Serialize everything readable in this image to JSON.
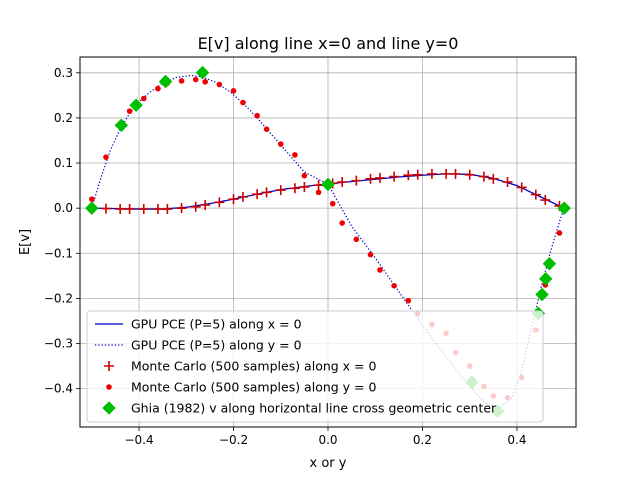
{
  "chart_data": {
    "type": "line",
    "title": "E[v] along line x=0 and line y=0",
    "xlabel": "x or y",
    "ylabel": "E[v]",
    "xlim": [
      -0.525,
      0.525
    ],
    "ylim": [
      -0.485,
      0.335
    ],
    "grid": true,
    "legend_position": "lower-left",
    "x_ticks": [
      -0.4,
      -0.2,
      0.0,
      0.2,
      0.4
    ],
    "x_tick_labels": [
      "−0.4",
      "−0.2",
      "0.0",
      "0.2",
      "0.4"
    ],
    "y_ticks": [
      -0.4,
      -0.3,
      -0.2,
      -0.1,
      0.0,
      0.1,
      0.2,
      0.3
    ],
    "y_tick_labels": [
      "−0.4",
      "−0.3",
      "−0.2",
      "−0.1",
      "0.0",
      "0.1",
      "0.2",
      "0.3"
    ],
    "colors": {
      "pce_x": "#0000cc",
      "pce_y": "#0000cc",
      "mc_x": "#cc0000",
      "mc_y": "#ee0000",
      "ghia": "#00bf00"
    },
    "series": [
      {
        "name": "GPU PCE (P=5) along x = 0",
        "kind": "line-solid",
        "color_key": "pce_x",
        "x": [
          -0.5,
          -0.45,
          -0.4,
          -0.35,
          -0.3,
          -0.25,
          -0.2,
          -0.15,
          -0.1,
          -0.05,
          0.0,
          0.05,
          0.1,
          0.15,
          0.2,
          0.25,
          0.3,
          0.35,
          0.4,
          0.45,
          0.5
        ],
        "y": [
          0.0,
          -0.001,
          -0.002,
          -0.002,
          0.002,
          0.01,
          0.02,
          0.031,
          0.041,
          0.048,
          0.054,
          0.059,
          0.064,
          0.069,
          0.073,
          0.076,
          0.075,
          0.066,
          0.05,
          0.025,
          0.0
        ]
      },
      {
        "name": "GPU PCE (P=5) along y = 0",
        "kind": "line-dotted",
        "color_key": "pce_y",
        "x": [
          -0.5,
          -0.48,
          -0.46,
          -0.44,
          -0.42,
          -0.4,
          -0.38,
          -0.35,
          -0.32,
          -0.29,
          -0.27,
          -0.24,
          -0.21,
          -0.18,
          -0.15,
          -0.1,
          -0.05,
          0.0,
          0.05,
          0.1,
          0.15,
          0.2,
          0.25,
          0.3,
          0.33,
          0.36,
          0.39,
          0.41,
          0.43,
          0.45,
          0.47,
          0.49,
          0.5
        ],
        "y": [
          0.0,
          0.07,
          0.13,
          0.175,
          0.21,
          0.235,
          0.255,
          0.277,
          0.29,
          0.294,
          0.292,
          0.28,
          0.26,
          0.233,
          0.2,
          0.14,
          0.08,
          0.053,
          -0.04,
          -0.11,
          -0.185,
          -0.26,
          -0.33,
          -0.395,
          -0.43,
          -0.445,
          -0.42,
          -0.36,
          -0.27,
          -0.18,
          -0.1,
          -0.03,
          0.0
        ]
      },
      {
        "name": "Monte Carlo (500 samples) along x = 0",
        "kind": "marker-plus",
        "color_key": "mc_x",
        "x": [
          -0.5,
          -0.47,
          -0.44,
          -0.42,
          -0.39,
          -0.36,
          -0.34,
          -0.31,
          -0.28,
          -0.26,
          -0.23,
          -0.2,
          -0.18,
          -0.15,
          -0.13,
          -0.1,
          -0.07,
          -0.05,
          -0.02,
          0.01,
          0.03,
          0.06,
          0.09,
          0.11,
          0.14,
          0.17,
          0.19,
          0.22,
          0.25,
          0.27,
          0.3,
          0.33,
          0.35,
          0.38,
          0.41,
          0.44,
          0.46,
          0.49
        ],
        "y": [
          0.0,
          -0.001,
          -0.002,
          -0.002,
          -0.002,
          -0.002,
          -0.002,
          0.0,
          0.003,
          0.007,
          0.013,
          0.02,
          0.025,
          0.031,
          0.035,
          0.04,
          0.044,
          0.047,
          0.051,
          0.055,
          0.058,
          0.061,
          0.065,
          0.067,
          0.07,
          0.073,
          0.074,
          0.076,
          0.076,
          0.076,
          0.074,
          0.07,
          0.065,
          0.058,
          0.046,
          0.03,
          0.018,
          0.005
        ]
      },
      {
        "name": "Monte Carlo (500 samples) along y = 0",
        "kind": "marker-dot",
        "color_key": "mc_y",
        "x": [
          -0.5,
          -0.47,
          -0.44,
          -0.42,
          -0.39,
          -0.36,
          -0.34,
          -0.31,
          -0.28,
          -0.26,
          -0.23,
          -0.2,
          -0.18,
          -0.15,
          -0.13,
          -0.1,
          -0.07,
          -0.05,
          -0.02,
          0.01,
          0.03,
          0.06,
          0.09,
          0.11,
          0.14,
          0.17,
          0.19,
          0.22,
          0.25,
          0.27,
          0.3,
          0.33,
          0.35,
          0.38,
          0.41,
          0.44,
          0.46,
          0.49
        ],
        "y": [
          0.02,
          0.113,
          0.18,
          0.215,
          0.243,
          0.265,
          0.277,
          0.282,
          0.285,
          0.28,
          0.274,
          0.26,
          0.234,
          0.205,
          0.175,
          0.142,
          0.118,
          0.072,
          0.035,
          0.01,
          -0.033,
          -0.069,
          -0.103,
          -0.137,
          -0.172,
          -0.205,
          -0.234,
          -0.258,
          -0.277,
          -0.32,
          -0.35,
          -0.395,
          -0.416,
          -0.42,
          -0.375,
          -0.27,
          -0.17,
          -0.055
        ]
      },
      {
        "name": "Ghia (1982) v along horizontal line cross geometric center",
        "kind": "marker-diamond",
        "color_key": "ghia",
        "x": [
          -0.5,
          -0.4375,
          -0.4063,
          -0.3438,
          -0.2656,
          0.0,
          0.3047,
          0.3594,
          0.4453,
          0.4531,
          0.4609,
          0.4688,
          0.5
        ],
        "y": [
          0.0,
          0.1836,
          0.2281,
          0.2807,
          0.3004,
          0.0526,
          -0.3859,
          -0.4499,
          -0.2331,
          -0.1914,
          -0.1566,
          -0.1231,
          0.0
        ]
      }
    ]
  }
}
